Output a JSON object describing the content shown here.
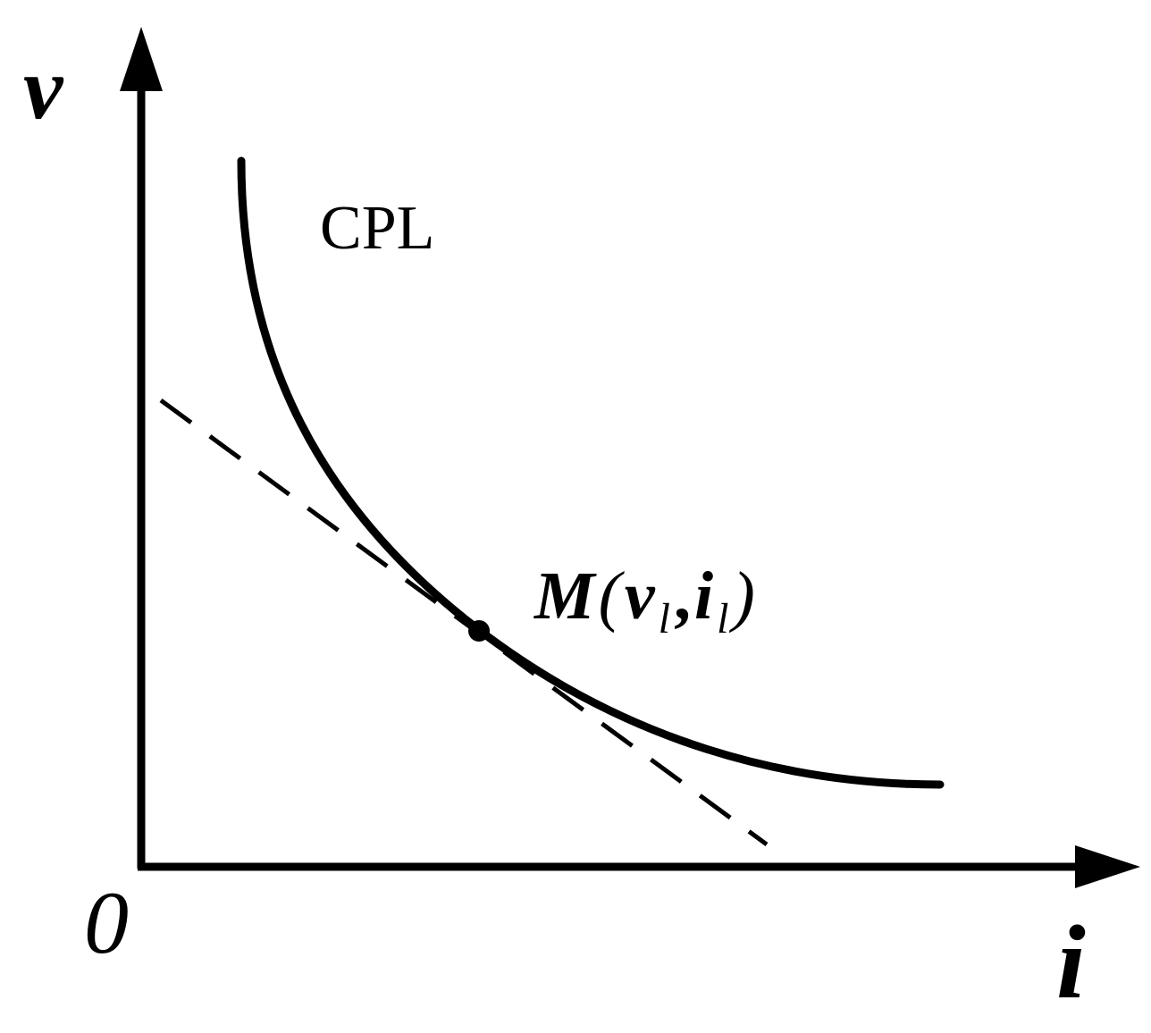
{
  "axes": {
    "y_label": "v",
    "x_label": "i",
    "origin_label": "0"
  },
  "curve": {
    "label": "CPL"
  },
  "point": {
    "letter": "M",
    "open_paren": "(",
    "v_symbol": "v",
    "v_subscript": "l",
    "comma": ",",
    "i_symbol": "i",
    "i_subscript": "l",
    "close_paren": ")"
  },
  "colors": {
    "ink": "#000000",
    "background": "#ffffff"
  }
}
